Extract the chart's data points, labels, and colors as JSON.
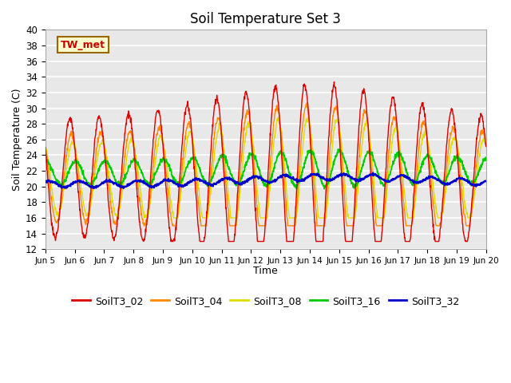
{
  "title": "Soil Temperature Set 3",
  "xlabel": "Time",
  "ylabel": "Soil Temperature (C)",
  "ylim": [
    12,
    40
  ],
  "yticks": [
    12,
    14,
    16,
    18,
    20,
    22,
    24,
    26,
    28,
    30,
    32,
    34,
    36,
    38,
    40
  ],
  "bg_color": "#e8e8e8",
  "grid_color": "white",
  "annotation_text": "TW_met",
  "annotation_bg": "#ffffcc",
  "annotation_border": "#996600",
  "annotation_text_color": "#cc0000",
  "series_colors": {
    "SoilT3_02": "#dd0000",
    "SoilT3_04": "#ff8800",
    "SoilT3_08": "#dddd00",
    "SoilT3_16": "#00cc00",
    "SoilT3_32": "#0000cc"
  },
  "x_start": 5.0,
  "x_end": 20.0,
  "xtick_positions": [
    5,
    6,
    7,
    8,
    9,
    10,
    11,
    12,
    13,
    14,
    15,
    16,
    17,
    18,
    19,
    20
  ],
  "xtick_labels": [
    "Jun 5",
    "Jun 6",
    "Jun 7",
    "Jun 8",
    "Jun 9",
    "Jun 10",
    "Jun 11",
    "Jun 12",
    "Jun 13",
    "Jun 14",
    "Jun 15",
    "Jun 16",
    "Jun 17",
    "Jun 18",
    "Jun 19",
    "Jun 20"
  ]
}
